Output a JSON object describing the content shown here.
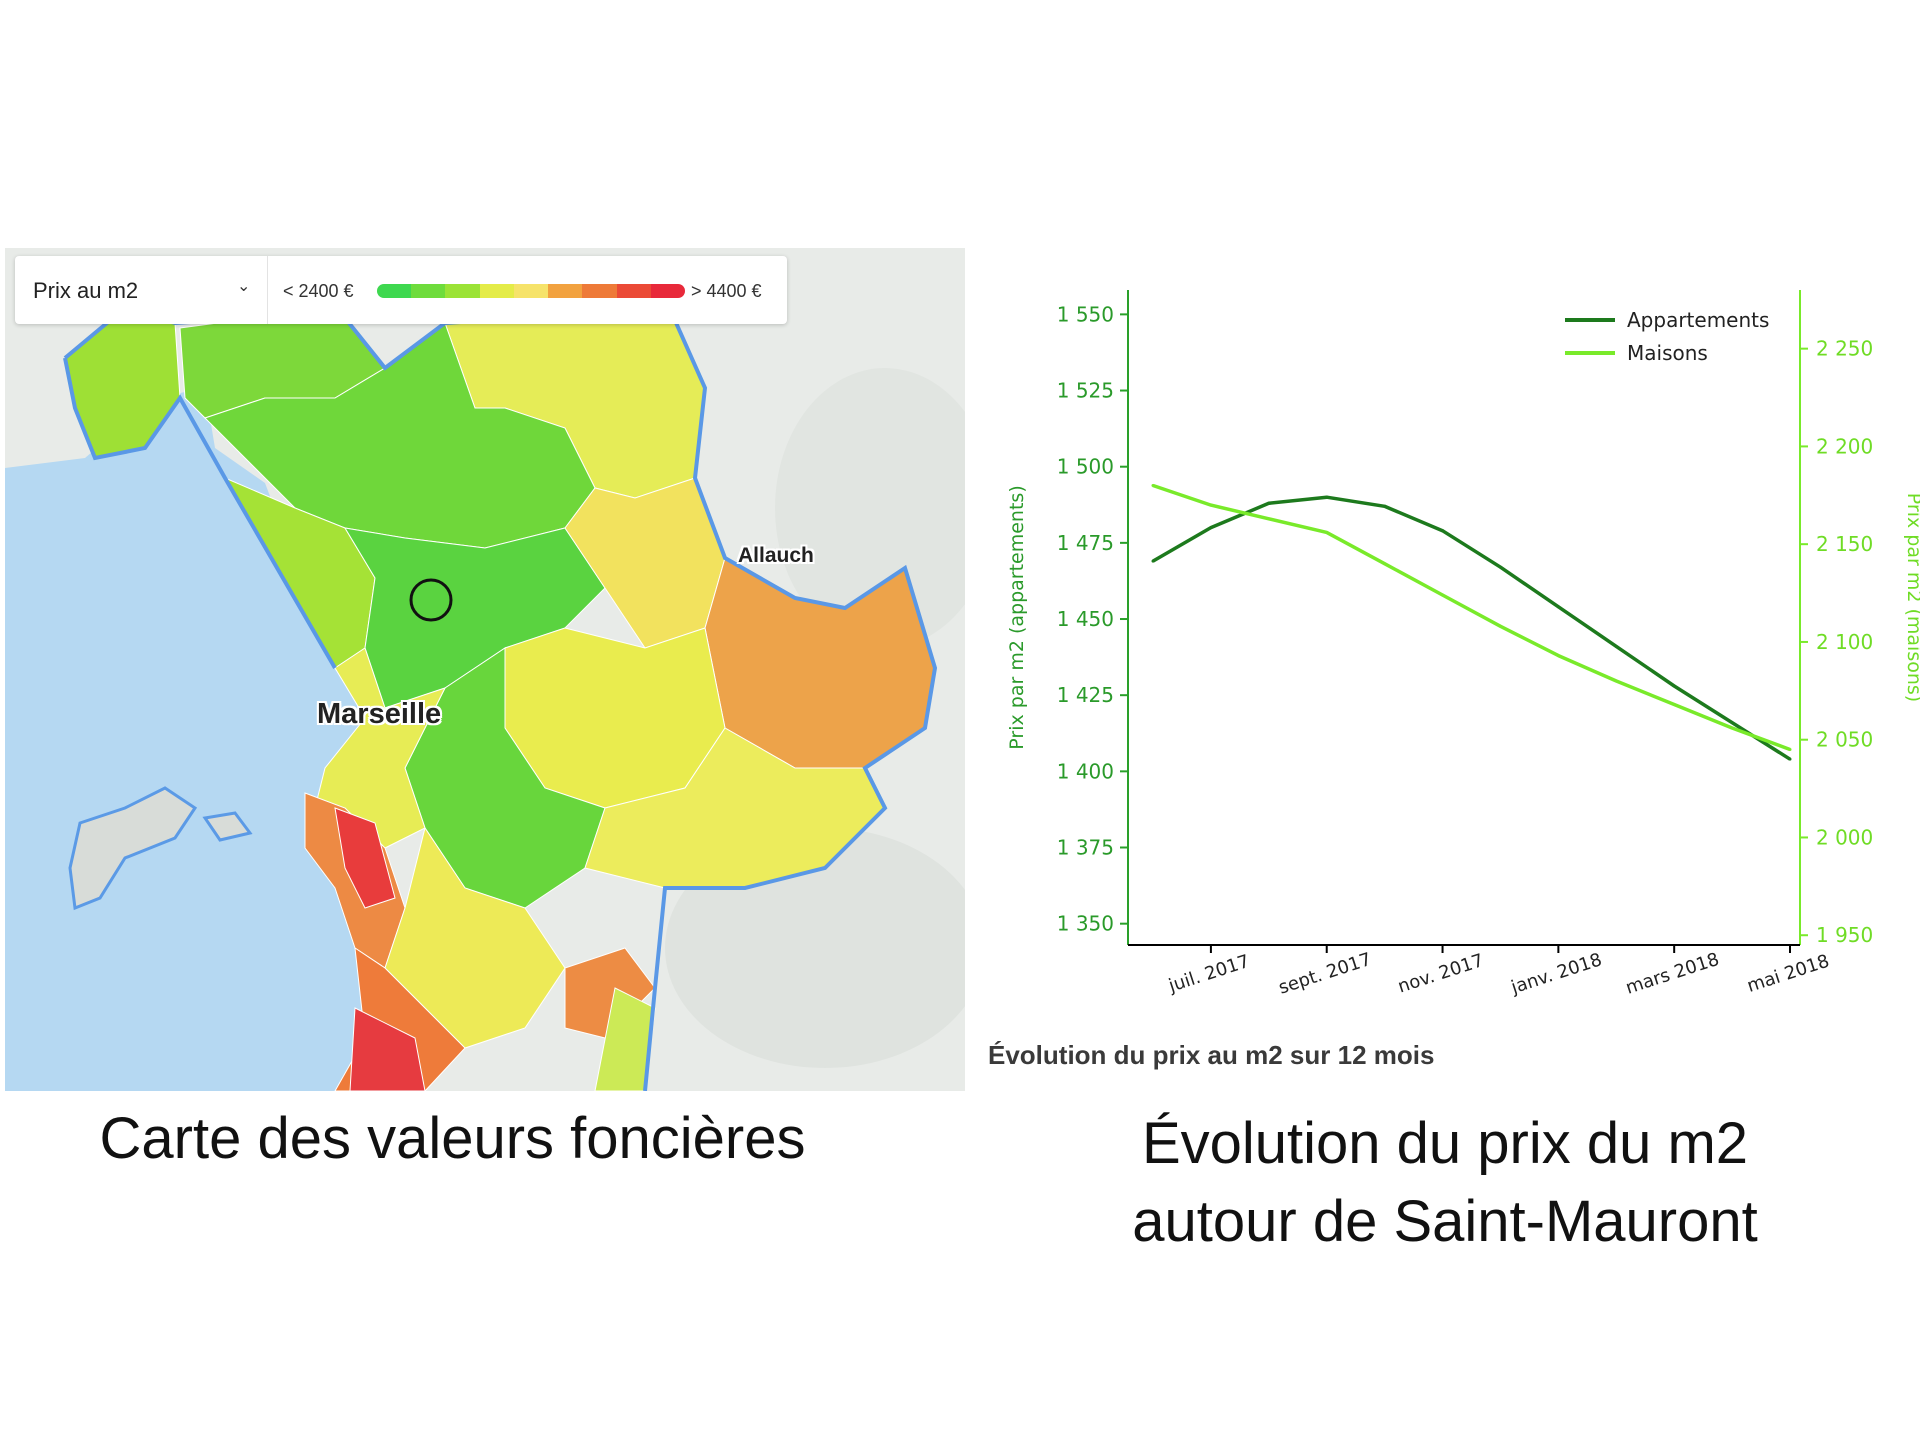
{
  "map": {
    "selector_label": "Prix au m2",
    "legend_min": "< 2400 €",
    "legend_max": "> 4400 €",
    "legend_colors": [
      "#3ed84f",
      "#6edc3c",
      "#9be336",
      "#e4ec48",
      "#f6e36a",
      "#f2a23f",
      "#ee7a38",
      "#eb4a36",
      "#e8293a"
    ],
    "place_labels": {
      "city": "Marseille",
      "town": "Allauch"
    },
    "caption": "Carte des valeurs foncières"
  },
  "chart_caption": "Évolution du prix au m2 sur 12 mois",
  "right_caption_line1": "Évolution du prix du m2",
  "right_caption_line2": "autour de Saint-Mauront",
  "chart_data": {
    "type": "line",
    "title": "Évolution du prix au m2 sur 12 mois",
    "x": [
      "2017-06",
      "2017-07",
      "2017-08",
      "2017-09",
      "2017-10",
      "2017-11",
      "2017-12",
      "2018-01",
      "2018-02",
      "2018-03",
      "2018-04",
      "2018-05"
    ],
    "x_tick_labels": [
      "juil. 2017",
      "sept. 2017",
      "nov. 2017",
      "janv. 2018",
      "mars 2018",
      "mai 2018"
    ],
    "x_tick_months": [
      "2017-07",
      "2017-09",
      "2017-11",
      "2018-01",
      "2018-03",
      "2018-05"
    ],
    "y_left": {
      "label": "Prix par m2 (appartements)",
      "range": [
        1343,
        1558
      ],
      "ticks": [
        "1 350",
        "1 375",
        "1 400",
        "1 425",
        "1 450",
        "1 475",
        "1 500",
        "1 525",
        "1 550"
      ],
      "tick_values": [
        1350,
        1375,
        1400,
        1425,
        1450,
        1475,
        1500,
        1525,
        1550
      ]
    },
    "y_right": {
      "label": "Prix par m2 (maisons)",
      "range": [
        1945,
        2280
      ],
      "ticks": [
        "1 950",
        "2 000",
        "2 050",
        "2 100",
        "2 150",
        "2 200",
        "2 250"
      ],
      "tick_values": [
        1950,
        2000,
        2050,
        2100,
        2150,
        2200,
        2250
      ]
    },
    "series": [
      {
        "name": "Appartements",
        "axis": "left",
        "color": "#1d7a1d",
        "values": [
          1469,
          1480,
          1488,
          1490,
          1487,
          1479,
          1467,
          1454,
          1441,
          1428,
          1416,
          1404
        ]
      },
      {
        "name": "Maisons",
        "axis": "right",
        "color": "#79ea2a",
        "values": [
          2180,
          2170,
          2163,
          2156,
          2140,
          2124,
          2108,
          2093,
          2080,
          2068,
          2056,
          2045
        ]
      }
    ],
    "legend_position": "top-right",
    "grid": false
  }
}
